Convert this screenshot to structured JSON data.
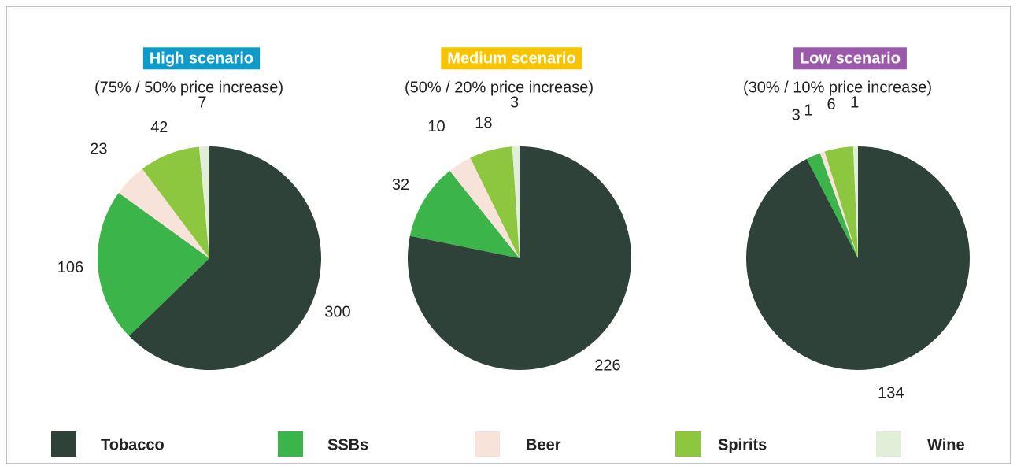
{
  "chart_data": [
    {
      "type": "pie",
      "title": "High scenario",
      "title_color": "#0f9bc9",
      "subtitle": "(75% / 50% price increase)",
      "categories": [
        "Tobacco",
        "SSBs",
        "Beer",
        "Spirits",
        "Wine"
      ],
      "colors": [
        "#2f4239",
        "#3bb54a",
        "#f8e3db",
        "#8dc63f",
        "#e1efd9"
      ],
      "values": [
        300,
        106,
        23,
        42,
        7
      ]
    },
    {
      "type": "pie",
      "title": "Medium scenario",
      "title_color": "#f6c500",
      "subtitle": "(50% / 20% price increase)",
      "categories": [
        "Tobacco",
        "SSBs",
        "Beer",
        "Spirits",
        "Wine"
      ],
      "colors": [
        "#2f4239",
        "#3bb54a",
        "#f8e3db",
        "#8dc63f",
        "#e1efd9"
      ],
      "values": [
        226,
        32,
        10,
        18,
        3
      ]
    },
    {
      "type": "pie",
      "title": "Low scenario",
      "title_color": "#9b59a9",
      "subtitle": "(30% / 10% price increase)",
      "categories": [
        "Tobacco",
        "SSBs",
        "Beer",
        "Spirits",
        "Wine"
      ],
      "colors": [
        "#2f4239",
        "#3bb54a",
        "#f8e3db",
        "#8dc63f",
        "#e1efd9"
      ],
      "values": [
        134,
        3,
        1,
        6,
        1
      ]
    }
  ]
}
